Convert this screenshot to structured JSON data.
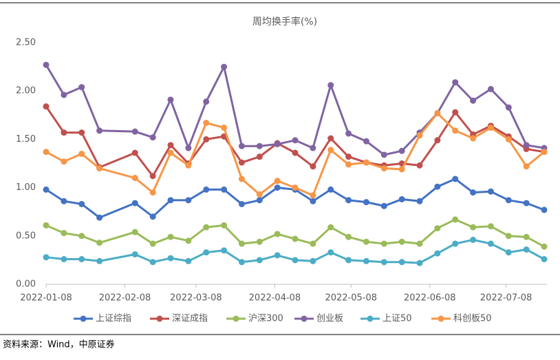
{
  "chart_data": {
    "type": "line",
    "title": "周均换手率(%)",
    "source": "资料来源：Wind，中原证券",
    "x": [
      "2022-01-08",
      "2022-01-15",
      "2022-01-22",
      "2022-01-29",
      "2022-02-12",
      "2022-02-19",
      "2022-02-26",
      "2022-03-05",
      "2022-03-12",
      "2022-03-19",
      "2022-03-26",
      "2022-04-02",
      "2022-04-09",
      "2022-04-16",
      "2022-04-23",
      "2022-04-30",
      "2022-05-07",
      "2022-05-14",
      "2022-05-21",
      "2022-05-28",
      "2022-06-04",
      "2022-06-11",
      "2022-06-18",
      "2022-06-25",
      "2022-07-02",
      "2022-07-09",
      "2022-07-16",
      "2022-07-23"
    ],
    "xlim": [
      "2022-01-08",
      "2022-07-23"
    ],
    "xticks": [
      "2022-01-08",
      "2022-02-08",
      "2022-03-08",
      "2022-04-08",
      "2022-05-08",
      "2022-06-08",
      "2022-07-08"
    ],
    "ylim": [
      0,
      2.5
    ],
    "yticks": [
      {
        "value": 0,
        "label": "0.00"
      },
      {
        "value": 0.5,
        "label": "0.50"
      },
      {
        "value": 1,
        "label": "1.00"
      },
      {
        "value": 1.5,
        "label": "1.50"
      },
      {
        "value": 2,
        "label": "2.00"
      },
      {
        "value": 2.5,
        "label": "2.50"
      }
    ],
    "legend": "bottom",
    "series": [
      {
        "name": "上证综指",
        "color": "#4472c4",
        "values": [
          0.98,
          0.86,
          0.83,
          0.69,
          0.84,
          0.7,
          0.87,
          0.87,
          0.98,
          0.98,
          0.83,
          0.87,
          1.0,
          0.98,
          0.86,
          0.98,
          0.87,
          0.85,
          0.81,
          0.88,
          0.86,
          1.01,
          1.09,
          0.95,
          0.96,
          0.87,
          0.84,
          0.77
        ]
      },
      {
        "name": "深证成指",
        "color": "#c0504d",
        "values": [
          1.84,
          1.57,
          1.57,
          1.21,
          1.36,
          1.12,
          1.44,
          1.25,
          1.5,
          1.53,
          1.26,
          1.32,
          1.46,
          1.36,
          1.22,
          1.51,
          1.32,
          1.26,
          1.23,
          1.25,
          1.23,
          1.49,
          1.78,
          1.55,
          1.64,
          1.53,
          1.4,
          1.37
        ]
      },
      {
        "name": "沪深300",
        "color": "#9bbb59",
        "values": [
          0.61,
          0.53,
          0.5,
          0.43,
          0.54,
          0.42,
          0.49,
          0.45,
          0.59,
          0.61,
          0.42,
          0.44,
          0.52,
          0.47,
          0.42,
          0.59,
          0.49,
          0.44,
          0.42,
          0.44,
          0.42,
          0.58,
          0.67,
          0.59,
          0.6,
          0.5,
          0.49,
          0.39
        ]
      },
      {
        "name": "创业板",
        "color": "#8064a2",
        "values": [
          2.27,
          1.96,
          2.04,
          1.59,
          1.58,
          1.52,
          1.91,
          1.41,
          1.89,
          2.25,
          1.43,
          1.43,
          1.45,
          1.49,
          1.41,
          2.06,
          1.56,
          1.48,
          1.34,
          1.38,
          1.57,
          1.77,
          2.09,
          1.9,
          2.02,
          1.83,
          1.44,
          1.41
        ]
      },
      {
        "name": "上证50",
        "color": "#4bacc6",
        "values": [
          0.28,
          0.26,
          0.26,
          0.24,
          0.31,
          0.23,
          0.27,
          0.24,
          0.33,
          0.35,
          0.23,
          0.25,
          0.3,
          0.25,
          0.24,
          0.33,
          0.25,
          0.24,
          0.23,
          0.23,
          0.22,
          0.32,
          0.42,
          0.46,
          0.42,
          0.33,
          0.36,
          0.26
        ]
      },
      {
        "name": "科创板50",
        "color": "#f79646",
        "values": [
          1.37,
          1.27,
          1.35,
          1.2,
          1.1,
          0.95,
          1.36,
          1.23,
          1.67,
          1.62,
          1.09,
          0.93,
          1.07,
          1.0,
          0.92,
          1.39,
          1.24,
          1.26,
          1.2,
          1.19,
          1.54,
          1.77,
          1.59,
          1.51,
          1.62,
          1.5,
          1.22,
          1.37
        ]
      }
    ]
  }
}
